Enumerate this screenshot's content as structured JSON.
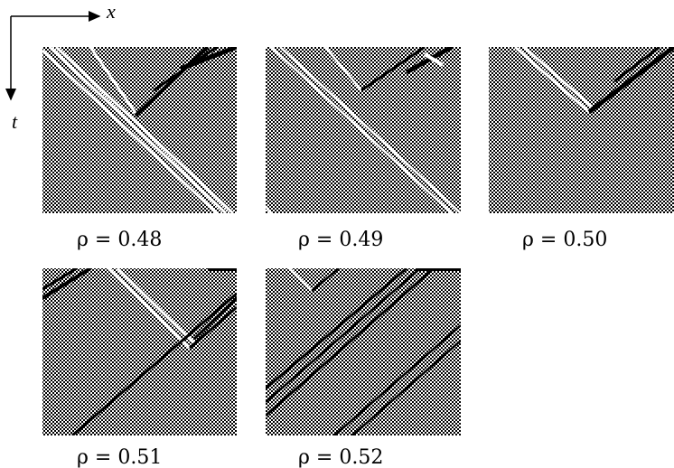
{
  "axes": {
    "x": "x",
    "t": "t"
  },
  "panels": [
    {
      "label": "ρ = 0.48"
    },
    {
      "label": "ρ = 0.49"
    },
    {
      "label": "ρ = 0.50"
    },
    {
      "label": "ρ = 0.51"
    },
    {
      "label": "ρ = 0.52"
    }
  ]
}
